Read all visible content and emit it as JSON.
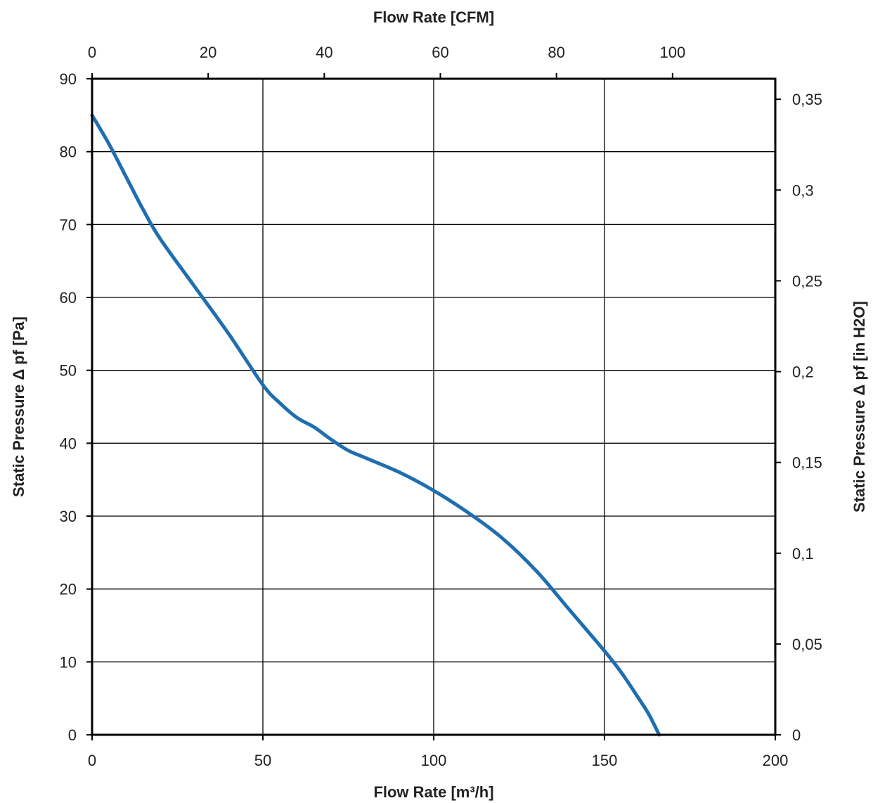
{
  "chart_data": {
    "type": "line",
    "x_bottom": {
      "label": "Flow Rate  [m³/h]",
      "range": [
        0,
        200
      ],
      "ticks": [
        0,
        50,
        100,
        150,
        200
      ],
      "tick_labels": [
        "0",
        "50",
        "100",
        "150",
        "200"
      ]
    },
    "x_top": {
      "label": "Flow Rate  [CFM]",
      "range": [
        0,
        117.7
      ],
      "ticks": [
        0,
        20,
        40,
        60,
        80,
        100
      ],
      "tick_labels": [
        "0",
        "20",
        "40",
        "60",
        "80",
        "100"
      ]
    },
    "y_left": {
      "label": "Static Pressure Δ pf [Pa]",
      "range": [
        0,
        90
      ],
      "ticks": [
        0,
        10,
        20,
        30,
        40,
        50,
        60,
        70,
        80,
        90
      ],
      "tick_labels": [
        "0",
        "10",
        "20",
        "30",
        "40",
        "50",
        "60",
        "70",
        "80",
        "90"
      ]
    },
    "y_right": {
      "label": "Static Pressure Δ pf [in H2O]",
      "range": [
        0,
        0.3613
      ],
      "ticks": [
        0,
        0.05,
        0.1,
        0.15,
        0.2,
        0.25,
        0.3,
        0.35
      ],
      "tick_labels": [
        "0",
        "0,05",
        "0,1",
        "0,15",
        "0,2",
        "0,25",
        "0,3",
        "0,35"
      ]
    },
    "grid": true,
    "series": [
      {
        "color": "#1f6eb0",
        "x": [
          0,
          5,
          10,
          15,
          20,
          30,
          40,
          50,
          55,
          60,
          65,
          70,
          75,
          80,
          90,
          100,
          110,
          120,
          130,
          140,
          150,
          155,
          160,
          163,
          166
        ],
        "y": [
          85,
          81,
          76.5,
          72,
          68,
          61.5,
          55,
          48,
          45.5,
          43.5,
          42.2,
          40.5,
          39,
          38,
          36,
          33.5,
          30.5,
          27,
          22.5,
          17,
          11.5,
          8.5,
          5,
          2.8,
          0
        ]
      }
    ]
  }
}
